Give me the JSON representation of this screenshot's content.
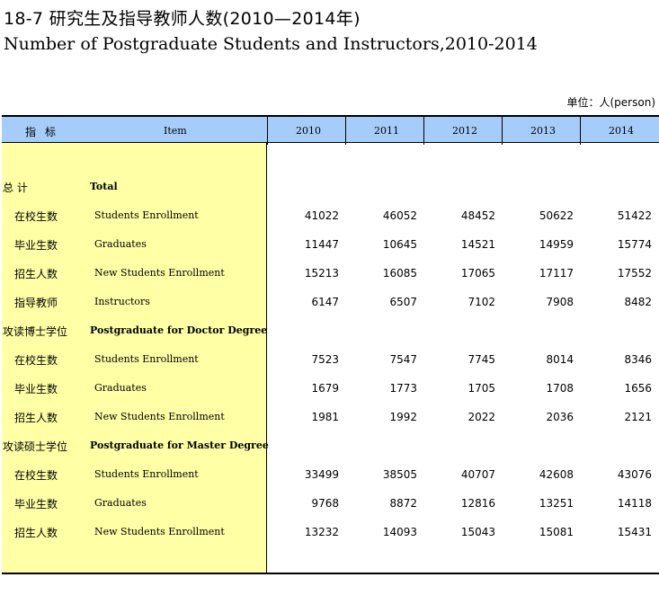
{
  "title_cn": "18-7   研究生及指导教师人数(2010—2014年)",
  "title_en": "Number of Postgraduate Students and Instructors,2010-2014",
  "unit": "单位：人(person)",
  "header": {
    "indicator_cn": "指标",
    "item_en": "Item",
    "years": [
      "2010",
      "2011",
      "2012",
      "2013",
      "2014"
    ]
  },
  "rows": [
    {
      "cn": "总  计",
      "en": "Total",
      "section": true,
      "values": []
    },
    {
      "cn": "在校生数",
      "en": "Students Enrollment",
      "section": false,
      "values": [
        "41022",
        "46052",
        "48452",
        "50622",
        "51422"
      ]
    },
    {
      "cn": "毕业生数",
      "en": "Graduates",
      "section": false,
      "values": [
        "11447",
        "10645",
        "14521",
        "14959",
        "15774"
      ]
    },
    {
      "cn": "招生人数",
      "en": "New Students Enrollment",
      "section": false,
      "values": [
        "15213",
        "16085",
        "17065",
        "17117",
        "17552"
      ]
    },
    {
      "cn": "指导教师",
      "en": "Instructors",
      "section": false,
      "values": [
        "6147",
        "6507",
        "7102",
        "7908",
        "8482"
      ]
    },
    {
      "cn": "攻读博士学位",
      "en": "Postgraduate for Doctor Degree",
      "section": true,
      "values": []
    },
    {
      "cn": "在校生数",
      "en": "Students Enrollment",
      "section": false,
      "values": [
        "7523",
        "7547",
        "7745",
        "8014",
        "8346"
      ]
    },
    {
      "cn": "毕业生数",
      "en": "Graduates",
      "section": false,
      "values": [
        "1679",
        "1773",
        "1705",
        "1708",
        "1656"
      ]
    },
    {
      "cn": "招生人数",
      "en": "New Students Enrollment",
      "section": false,
      "values": [
        "1981",
        "1992",
        "2022",
        "2036",
        "2121"
      ]
    },
    {
      "cn": "攻读硕士学位",
      "en": "Postgraduate for Master Degree",
      "section": true,
      "values": []
    },
    {
      "cn": "在校生数",
      "en": "Students Enrollment",
      "section": false,
      "values": [
        "33499",
        "38505",
        "40707",
        "42608",
        "43076"
      ]
    },
    {
      "cn": "毕业生数",
      "en": "Graduates",
      "section": false,
      "values": [
        "9768",
        "8872",
        "12816",
        "13251",
        "14118"
      ]
    },
    {
      "cn": "招生人数",
      "en": "New Students Enrollment",
      "section": false,
      "values": [
        "13232",
        "14093",
        "15043",
        "15081",
        "15431"
      ]
    }
  ]
}
